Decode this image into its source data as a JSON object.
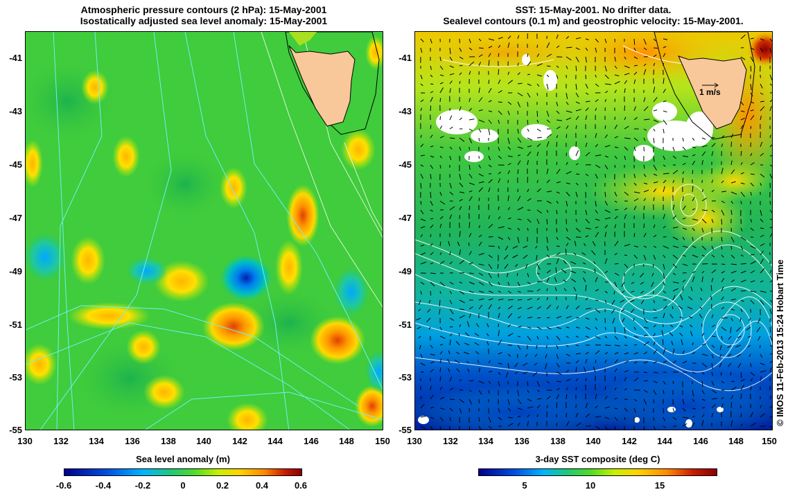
{
  "left_panel": {
    "title_line1": "Atmospheric pressure contours (2 hPa): 15-May-2001",
    "title_line2": "Isostatically adjusted sea level anomaly: 15-May-2001",
    "lat_ticks": [
      "-41",
      "-43",
      "-45",
      "-47",
      "-49",
      "-51",
      "-53",
      "-55"
    ],
    "lon_ticks": [
      "130",
      "132",
      "134",
      "136",
      "138",
      "140",
      "142",
      "144",
      "146",
      "148",
      "150"
    ],
    "colorbar_title": "Sea level anomaly (m)",
    "colorbar_ticks": [
      "-0.6",
      "-0.4",
      "-0.2",
      "0",
      "0.2",
      "0.4",
      "0.6"
    ]
  },
  "right_panel": {
    "title_line1": "SST: 15-May-2001. No drifter data.",
    "title_line2": "Sealevel contours (0.1 m) and geostrophic velocity: 15-May-2001.",
    "lat_ticks": [
      "-41",
      "-43",
      "-45",
      "-47",
      "-49",
      "-51",
      "-53",
      "-55"
    ],
    "lon_ticks": [
      "130",
      "132",
      "134",
      "136",
      "138",
      "140",
      "142",
      "144",
      "146",
      "148",
      "150"
    ],
    "velocity_scale_label": "1 m/s",
    "colorbar_title": "3-day SST composite (deg C)",
    "colorbar_ticks": [
      "5",
      "10",
      "15"
    ]
  },
  "credit": "© IMOS 11-Feb-2013 15:24 Hobart Time",
  "colors": {
    "land": "#f8c79a",
    "ocean_mid": "#3cc83c",
    "sla_scale": [
      "#00008b",
      "#0050e0",
      "#00b4ff",
      "#20c878",
      "#50dc28",
      "#c8f000",
      "#ffd200",
      "#ff8c00",
      "#c81e00",
      "#8b0000"
    ],
    "sst_scale": [
      "#00008b",
      "#0050e0",
      "#00b4ff",
      "#20c878",
      "#50dc28",
      "#c8f000",
      "#ffd200",
      "#ff8c00",
      "#c81e00",
      "#8b0000"
    ],
    "pressure_contour": "#6ff0f0",
    "sealevel_contour": "#ffffff"
  }
}
